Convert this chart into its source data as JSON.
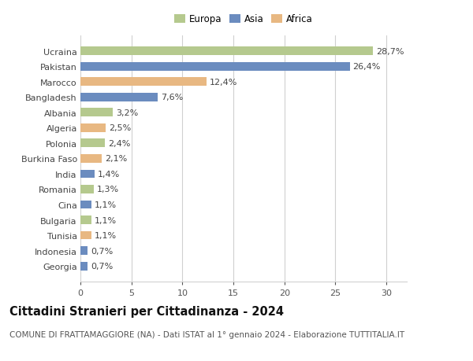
{
  "countries": [
    "Georgia",
    "Indonesia",
    "Tunisia",
    "Bulgaria",
    "Cina",
    "Romania",
    "India",
    "Burkina Faso",
    "Polonia",
    "Algeria",
    "Albania",
    "Bangladesh",
    "Marocco",
    "Pakistan",
    "Ucraina"
  ],
  "values": [
    0.7,
    0.7,
    1.1,
    1.1,
    1.1,
    1.3,
    1.4,
    2.1,
    2.4,
    2.5,
    3.2,
    7.6,
    12.4,
    26.4,
    28.7
  ],
  "labels": [
    "0,7%",
    "0,7%",
    "1,1%",
    "1,1%",
    "1,1%",
    "1,3%",
    "1,4%",
    "2,1%",
    "2,4%",
    "2,5%",
    "3,2%",
    "7,6%",
    "12,4%",
    "26,4%",
    "28,7%"
  ],
  "continents": [
    "Asia",
    "Asia",
    "Africa",
    "Europa",
    "Asia",
    "Europa",
    "Asia",
    "Africa",
    "Europa",
    "Africa",
    "Europa",
    "Asia",
    "Africa",
    "Asia",
    "Europa"
  ],
  "colors": {
    "Europa": "#b5c98e",
    "Asia": "#6b8cbf",
    "Africa": "#e8b882"
  },
  "legend_labels": [
    "Europa",
    "Asia",
    "Africa"
  ],
  "xlim": [
    0,
    32
  ],
  "xticks": [
    0,
    5,
    10,
    15,
    20,
    25,
    30
  ],
  "title": "Cittadini Stranieri per Cittadinanza - 2024",
  "subtitle": "COMUNE DI FRATTAMAGGIORE (NA) - Dati ISTAT al 1° gennaio 2024 - Elaborazione TUTTITALIA.IT",
  "background_color": "#ffffff",
  "grid_color": "#d0d0d0",
  "bar_height": 0.55,
  "title_fontsize": 10.5,
  "subtitle_fontsize": 7.5,
  "tick_fontsize": 8,
  "label_fontsize": 8,
  "legend_fontsize": 8.5
}
